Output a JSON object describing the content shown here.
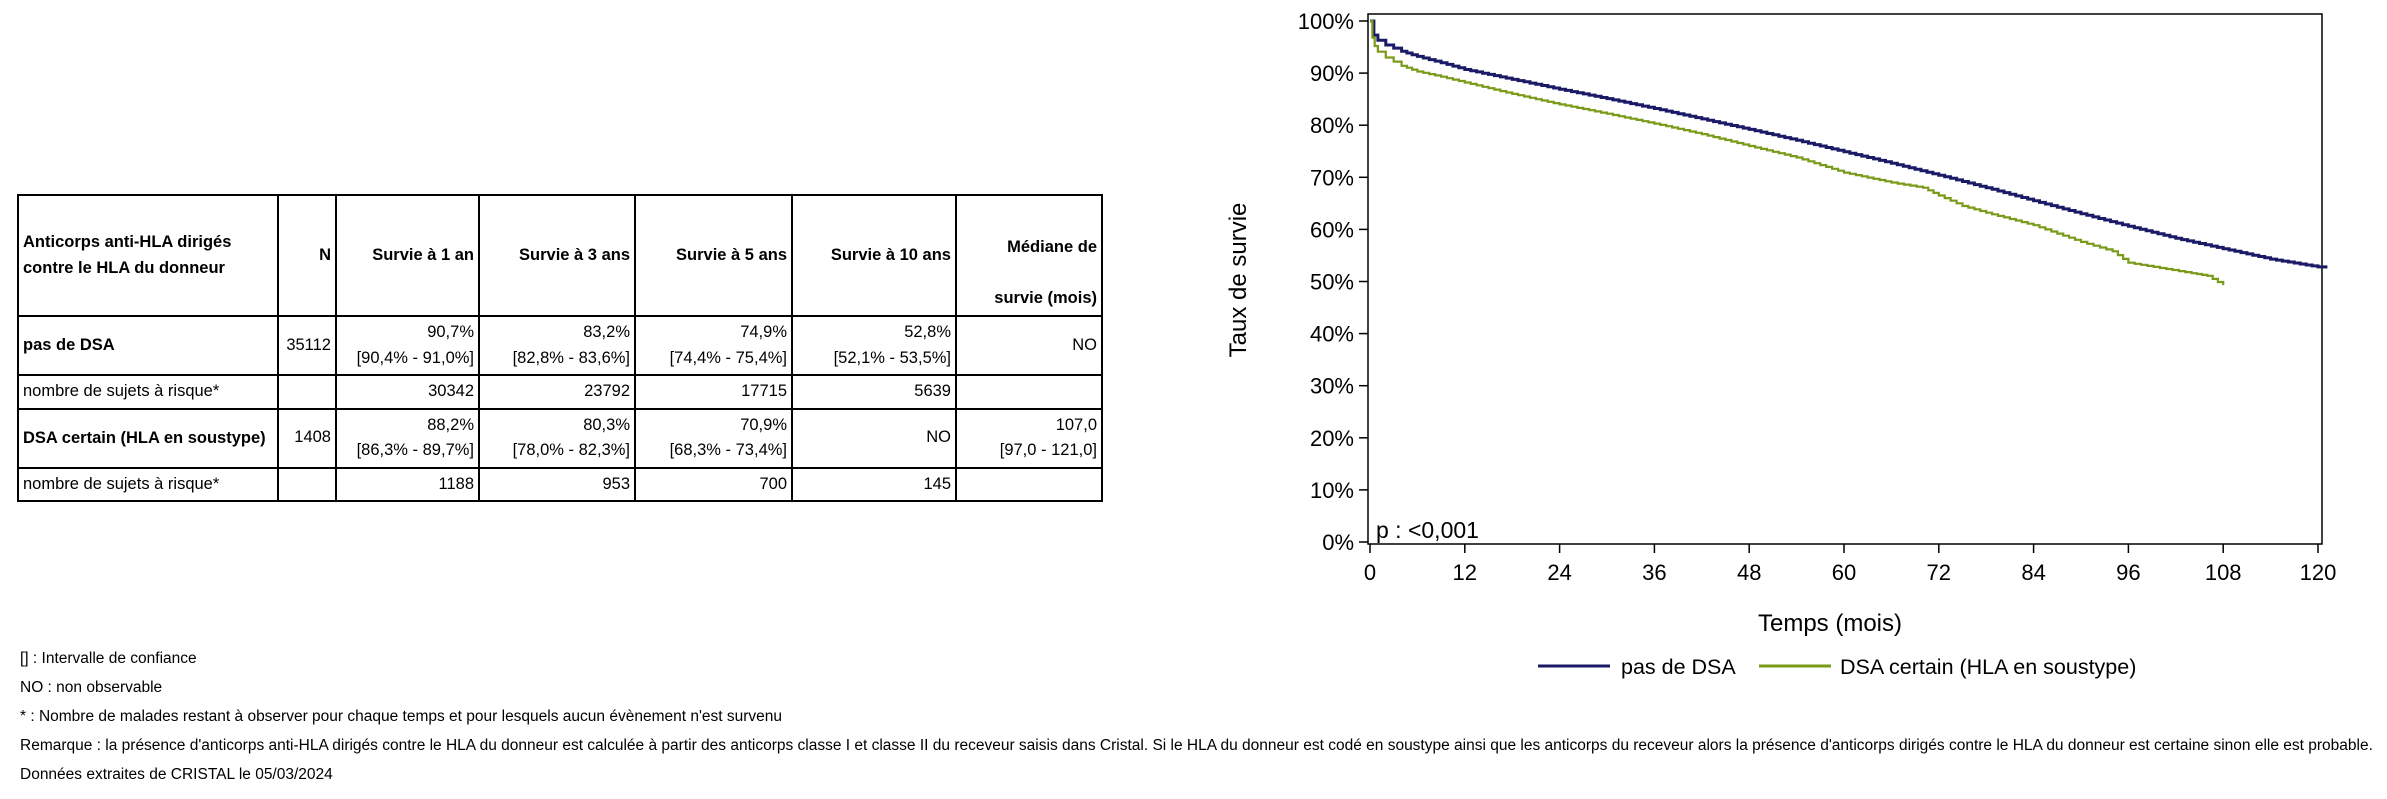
{
  "table": {
    "headers": {
      "group": "Anticorps anti-HLA dirigés contre le HLA du donneur",
      "n": "N",
      "s1": "Survie à 1 an",
      "s3": "Survie à 3 ans",
      "s5": "Survie à 5 ans",
      "s10": "Survie à 10 ans",
      "median_line1": "Médiane de",
      "median_line2": "survie (mois)"
    },
    "rows": [
      {
        "label": "pas de DSA",
        "n": "35112",
        "s1": "90,7%",
        "s1_ci": "[90,4% - 91,0%]",
        "s3": "83,2%",
        "s3_ci": "[82,8% - 83,6%]",
        "s5": "74,9%",
        "s5_ci": "[74,4% - 75,4%]",
        "s10": "52,8%",
        "s10_ci": "[52,1% - 53,5%]",
        "median": "NO",
        "median_ci": "",
        "risk_label": "nombre de sujets à risque*",
        "risk": [
          "30342",
          "23792",
          "17715",
          "5639"
        ]
      },
      {
        "label": "DSA certain (HLA en soustype)",
        "n": "1408",
        "s1": "88,2%",
        "s1_ci": "[86,3% - 89,7%]",
        "s3": "80,3%",
        "s3_ci": "[78,0% - 82,3%]",
        "s5": "70,9%",
        "s5_ci": "[68,3% - 73,4%]",
        "s10": "NO",
        "s10_ci": "",
        "median": "107,0",
        "median_ci": "[97,0 - 121,0]",
        "risk_label": "nombre de sujets à risque*",
        "risk": [
          "1188",
          "953",
          "700",
          "145"
        ]
      }
    ]
  },
  "notes": [
    "[] : Intervalle de confiance",
    "NO : non observable",
    "* : Nombre de malades restant à observer pour chaque temps et pour lesquels aucun évènement n'est survenu",
    "Remarque : la présence d'anticorps anti-HLA dirigés contre le HLA du donneur est calculée à partir des anticorps classe I et classe II du receveur saisis dans Cristal. Si le HLA du donneur est codé en soustype ainsi que les anticorps du receveur alors la présence d'anticorps dirigés contre le HLA du donneur est certaine sinon elle est probable.",
    "Données extraites de CRISTAL le 05/03/2024"
  ],
  "chart_data": {
    "type": "line",
    "xlabel": "Temps (mois)",
    "ylabel": "Taux de survie",
    "xlim": [
      0,
      120
    ],
    "ylim": [
      0,
      100
    ],
    "xticks": [
      0,
      12,
      24,
      36,
      48,
      60,
      72,
      84,
      96,
      108,
      120
    ],
    "yticks": [
      0,
      10,
      20,
      30,
      40,
      50,
      60,
      70,
      80,
      90,
      100
    ],
    "ytick_labels": [
      "0%",
      "10%",
      "20%",
      "30%",
      "40%",
      "50%",
      "60%",
      "70%",
      "80%",
      "90%",
      "100%"
    ],
    "annotation": "p : <0,001",
    "grid": false,
    "legend_position": "bottom",
    "series": [
      {
        "name": "pas de DSA",
        "color": "#1a1a66",
        "x": [
          0,
          0.5,
          1,
          2,
          3,
          4,
          6,
          9,
          12,
          18,
          24,
          30,
          36,
          42,
          48,
          54,
          60,
          66,
          72,
          78,
          84,
          90,
          96,
          102,
          108,
          114,
          120,
          121
        ],
        "y": [
          100,
          97.3,
          96.3,
          95.4,
          94.8,
          94.2,
          93.2,
          92.0,
          90.7,
          88.8,
          86.9,
          85.1,
          83.2,
          81.2,
          79.2,
          77.1,
          74.9,
          72.7,
          70.4,
          68.0,
          65.5,
          63.0,
          60.6,
          58.3,
          56.3,
          54.3,
          52.8,
          52.5
        ]
      },
      {
        "name": "DSA certain (HLA en soustype)",
        "color": "#7a9a1a",
        "x": [
          0,
          0.3,
          0.6,
          1,
          2,
          3,
          4,
          6,
          9,
          12,
          18,
          24,
          30,
          36,
          42,
          48,
          54,
          60,
          66,
          70,
          72,
          75,
          78,
          84,
          90,
          94,
          96,
          100,
          104,
          106,
          108
        ],
        "y": [
          100,
          96.8,
          95.2,
          94.1,
          93.0,
          92.2,
          91.4,
          90.3,
          89.3,
          88.2,
          86.0,
          84.0,
          82.2,
          80.3,
          78.3,
          76.0,
          73.8,
          70.9,
          69.0,
          68.0,
          66.5,
          64.5,
          63.2,
          60.8,
          57.6,
          55.8,
          53.6,
          52.6,
          51.6,
          51.1,
          49.3
        ]
      }
    ]
  }
}
